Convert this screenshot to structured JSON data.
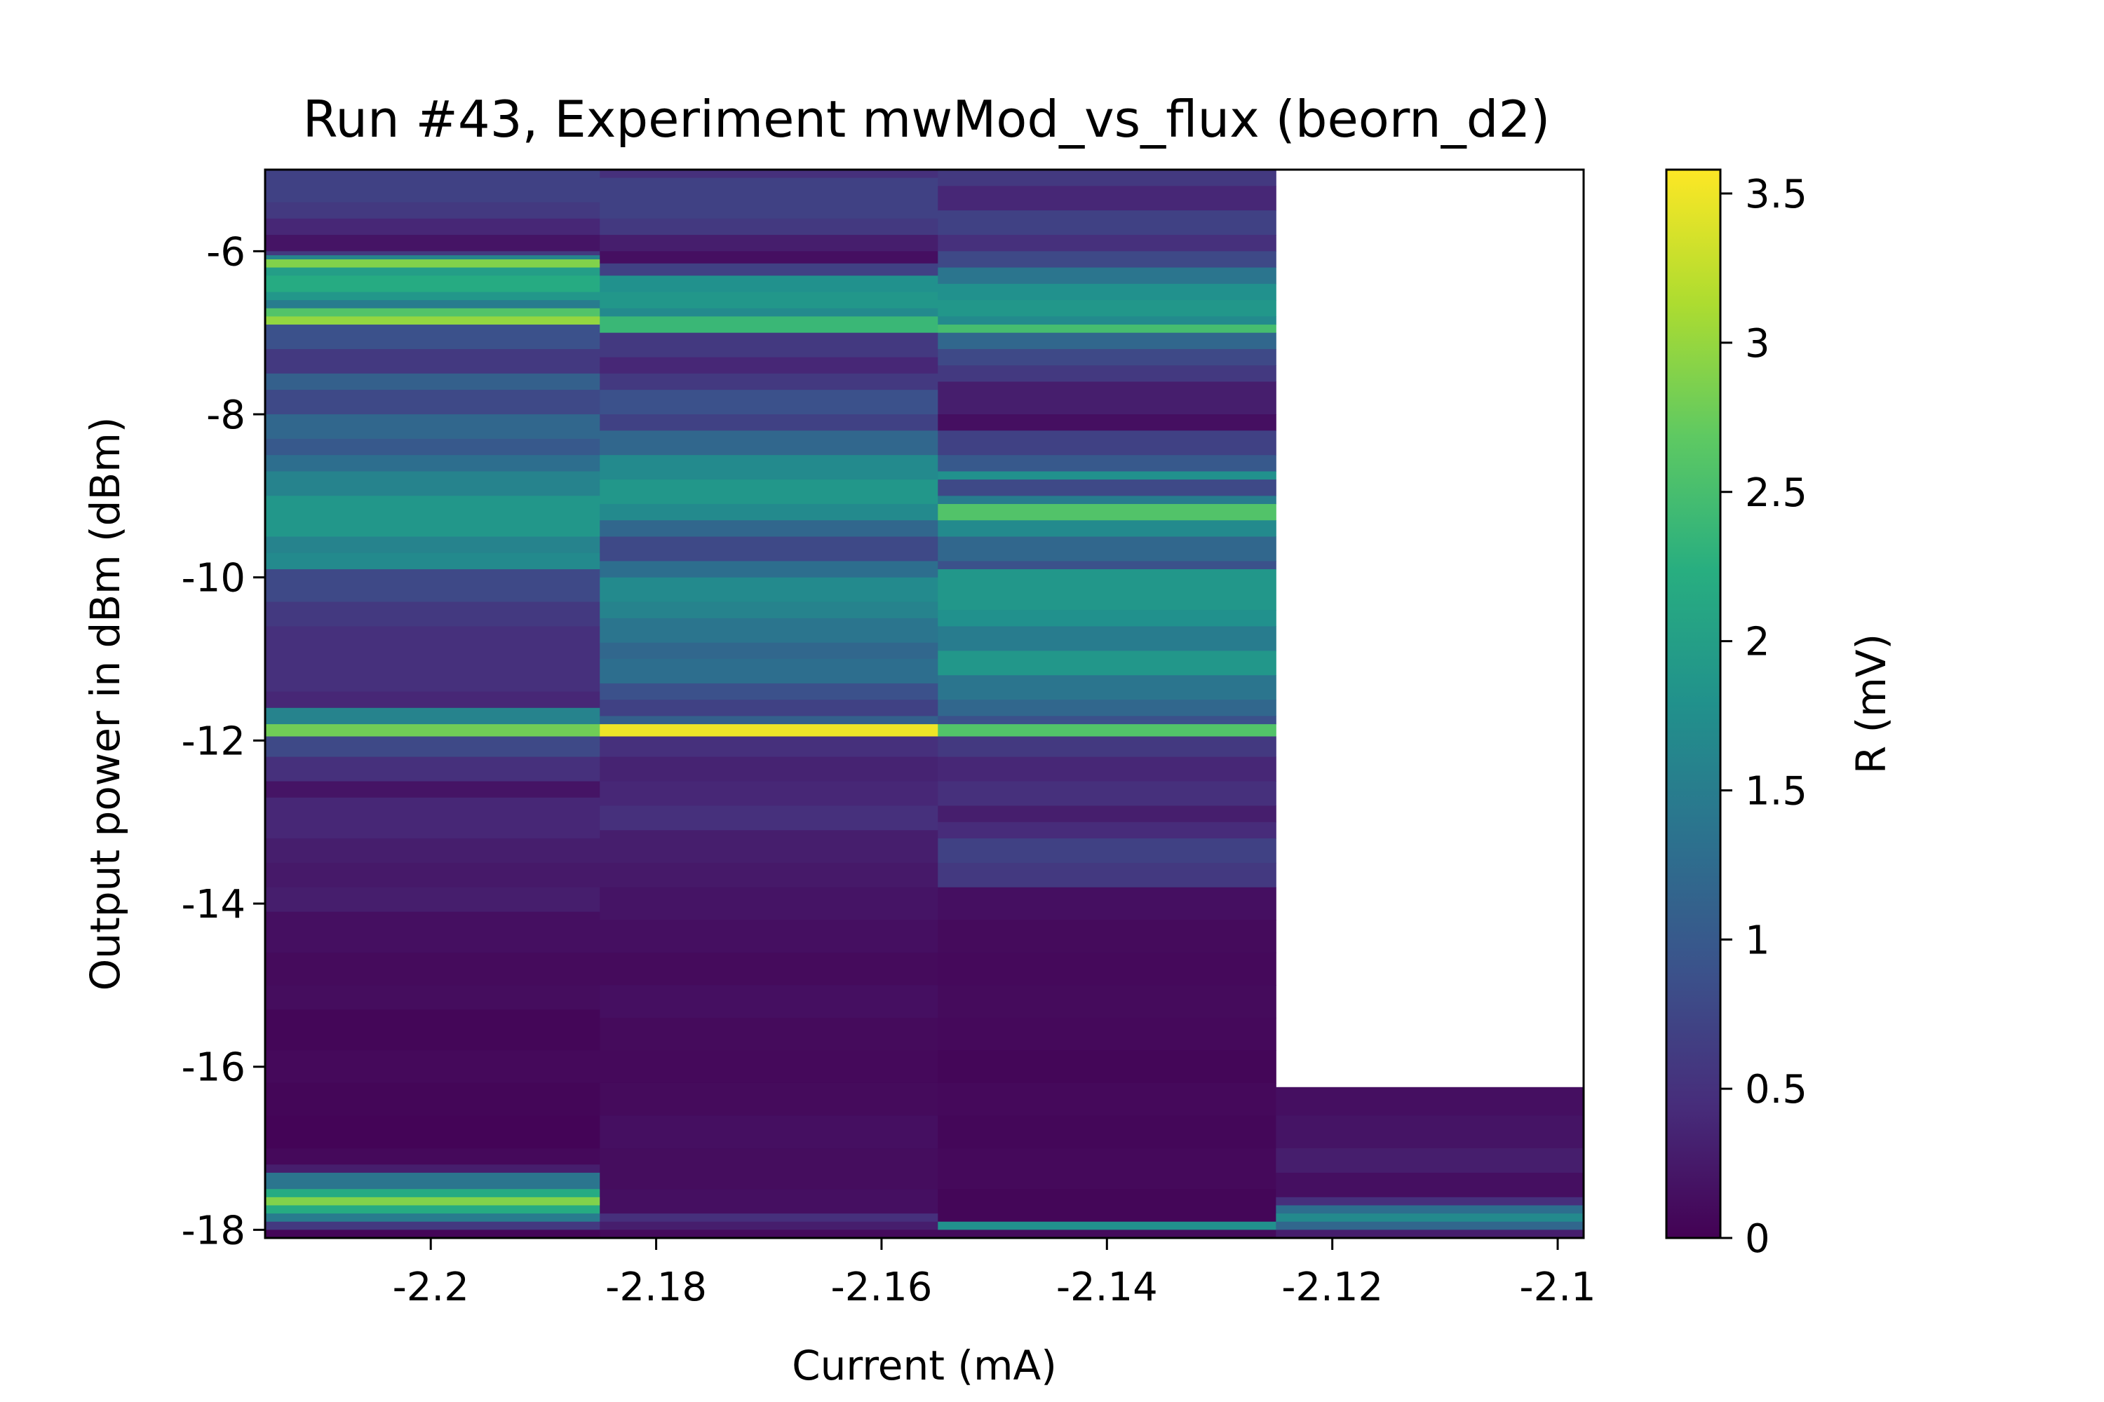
{
  "chart_data": {
    "type": "heatmap",
    "title": "Run #43, Experiment mwMod_vs_flux (beorn_d2)",
    "xlabel": "Current (mA)",
    "ylabel": "Output power in dBm (dBm)",
    "colorbar_label": "R (mV)",
    "colormap": "viridis",
    "xlim": [
      -2.2147,
      -2.0977
    ],
    "ylim": [
      -18.1,
      -5.0
    ],
    "clim": [
      0,
      3.58
    ],
    "x_ticks": [
      -2.2,
      -2.18,
      -2.16,
      -2.14,
      -2.12,
      -2.1
    ],
    "x_tick_labels": [
      "-2.2",
      "-2.18",
      "-2.16",
      "-2.14",
      "-2.12",
      "-2.1"
    ],
    "y_ticks": [
      -6,
      -8,
      -10,
      -12,
      -14,
      -16,
      -18
    ],
    "y_tick_labels": [
      "-6",
      "-8",
      "-10",
      "-12",
      "-14",
      "-16",
      "-18"
    ],
    "colorbar_ticks": [
      0,
      0.5,
      1,
      1.5,
      2,
      2.5,
      3,
      3.5
    ],
    "colorbar_tick_labels": [
      "0",
      "0.5",
      "1",
      "1.5",
      "2",
      "2.5",
      "3",
      "3.5"
    ],
    "columns": [
      {
        "x_center": -2.2,
        "y_top": -5.0,
        "y_bottom": -18.1,
        "stops": [
          [
            -5.0,
            0.7
          ],
          [
            -5.4,
            0.6
          ],
          [
            -5.6,
            0.4
          ],
          [
            -5.8,
            0.2
          ],
          [
            -6.0,
            0.6
          ],
          [
            -6.05,
            1.6
          ],
          [
            -6.1,
            2.9
          ],
          [
            -6.2,
            2.0
          ],
          [
            -6.3,
            2.2
          ],
          [
            -6.5,
            1.9
          ],
          [
            -6.6,
            1.5
          ],
          [
            -6.7,
            2.6
          ],
          [
            -6.8,
            3.0
          ],
          [
            -6.9,
            0.9
          ],
          [
            -7.2,
            0.6
          ],
          [
            -7.5,
            1.1
          ],
          [
            -7.7,
            0.8
          ],
          [
            -8.0,
            1.2
          ],
          [
            -8.3,
            1.0
          ],
          [
            -8.5,
            1.3
          ],
          [
            -8.7,
            1.6
          ],
          [
            -9.0,
            1.9
          ],
          [
            -9.5,
            1.6
          ],
          [
            -9.7,
            1.7
          ],
          [
            -9.9,
            0.8
          ],
          [
            -10.3,
            0.6
          ],
          [
            -10.6,
            0.5
          ],
          [
            -11.0,
            0.5
          ],
          [
            -11.4,
            0.4
          ],
          [
            -11.6,
            1.6
          ],
          [
            -11.8,
            2.8
          ],
          [
            -11.95,
            0.8
          ],
          [
            -12.2,
            0.5
          ],
          [
            -12.5,
            0.2
          ],
          [
            -12.7,
            0.4
          ],
          [
            -13.2,
            0.3
          ],
          [
            -13.5,
            0.25
          ],
          [
            -13.8,
            0.3
          ],
          [
            -14.1,
            0.15
          ],
          [
            -14.6,
            0.1
          ],
          [
            -15.0,
            0.12
          ],
          [
            -15.3,
            0.05
          ],
          [
            -15.8,
            0.08
          ],
          [
            -16.2,
            0.05
          ],
          [
            -16.6,
            0.03
          ],
          [
            -17.0,
            0.08
          ],
          [
            -17.2,
            0.3
          ],
          [
            -17.3,
            1.4
          ],
          [
            -17.5,
            2.2
          ],
          [
            -17.6,
            2.9
          ],
          [
            -17.7,
            2.2
          ],
          [
            -17.8,
            1.5
          ],
          [
            -17.9,
            0.6
          ],
          [
            -18.0,
            0.05
          ]
        ]
      },
      {
        "x_center": -2.17,
        "y_top": -5.0,
        "y_bottom": -18.1,
        "stops": [
          [
            -5.0,
            0.5
          ],
          [
            -5.1,
            0.7
          ],
          [
            -5.6,
            0.6
          ],
          [
            -5.8,
            0.3
          ],
          [
            -6.0,
            0.15
          ],
          [
            -6.15,
            0.7
          ],
          [
            -6.3,
            1.8
          ],
          [
            -6.5,
            1.9
          ],
          [
            -6.7,
            1.7
          ],
          [
            -6.8,
            2.4
          ],
          [
            -7.0,
            0.6
          ],
          [
            -7.3,
            0.4
          ],
          [
            -7.5,
            0.6
          ],
          [
            -7.7,
            0.9
          ],
          [
            -8.0,
            0.7
          ],
          [
            -8.2,
            1.2
          ],
          [
            -8.5,
            1.7
          ],
          [
            -8.8,
            1.9
          ],
          [
            -9.1,
            1.7
          ],
          [
            -9.3,
            1.2
          ],
          [
            -9.5,
            0.8
          ],
          [
            -9.8,
            1.3
          ],
          [
            -10.0,
            1.7
          ],
          [
            -10.3,
            1.6
          ],
          [
            -10.5,
            1.4
          ],
          [
            -10.8,
            1.2
          ],
          [
            -11.0,
            1.3
          ],
          [
            -11.3,
            0.9
          ],
          [
            -11.5,
            0.7
          ],
          [
            -11.7,
            1.1
          ],
          [
            -11.8,
            3.5
          ],
          [
            -11.95,
            0.5
          ],
          [
            -12.2,
            0.35
          ],
          [
            -12.5,
            0.4
          ],
          [
            -12.8,
            0.5
          ],
          [
            -13.1,
            0.3
          ],
          [
            -13.5,
            0.25
          ],
          [
            -13.8,
            0.2
          ],
          [
            -14.2,
            0.15
          ],
          [
            -14.6,
            0.1
          ],
          [
            -15.0,
            0.15
          ],
          [
            -15.4,
            0.1
          ],
          [
            -15.8,
            0.08
          ],
          [
            -16.2,
            0.1
          ],
          [
            -16.6,
            0.15
          ],
          [
            -17.0,
            0.12
          ],
          [
            -17.5,
            0.15
          ],
          [
            -17.8,
            0.5
          ],
          [
            -17.9,
            0.3
          ],
          [
            -18.0,
            0.1
          ]
        ]
      },
      {
        "x_center": -2.14,
        "y_top": -5.0,
        "y_bottom": -18.1,
        "stops": [
          [
            -5.0,
            0.6
          ],
          [
            -5.2,
            0.4
          ],
          [
            -5.5,
            0.7
          ],
          [
            -5.8,
            0.5
          ],
          [
            -6.0,
            0.8
          ],
          [
            -6.2,
            1.4
          ],
          [
            -6.4,
            1.8
          ],
          [
            -6.6,
            1.9
          ],
          [
            -6.8,
            1.7
          ],
          [
            -6.9,
            2.5
          ],
          [
            -7.0,
            1.2
          ],
          [
            -7.2,
            0.8
          ],
          [
            -7.4,
            0.6
          ],
          [
            -7.6,
            0.3
          ],
          [
            -8.0,
            0.15
          ],
          [
            -8.2,
            0.7
          ],
          [
            -8.5,
            1.0
          ],
          [
            -8.7,
            1.8
          ],
          [
            -8.8,
            0.8
          ],
          [
            -9.0,
            1.5
          ],
          [
            -9.1,
            2.6
          ],
          [
            -9.3,
            1.7
          ],
          [
            -9.5,
            1.2
          ],
          [
            -9.8,
            0.9
          ],
          [
            -9.9,
            1.9
          ],
          [
            -10.4,
            1.8
          ],
          [
            -10.6,
            1.5
          ],
          [
            -10.9,
            1.9
          ],
          [
            -11.2,
            1.4
          ],
          [
            -11.5,
            1.2
          ],
          [
            -11.7,
            0.9
          ],
          [
            -11.8,
            2.6
          ],
          [
            -11.95,
            0.6
          ],
          [
            -12.2,
            0.4
          ],
          [
            -12.5,
            0.5
          ],
          [
            -12.8,
            0.3
          ],
          [
            -13.0,
            0.45
          ],
          [
            -13.2,
            0.7
          ],
          [
            -13.5,
            0.6
          ],
          [
            -13.8,
            0.15
          ],
          [
            -14.2,
            0.1
          ],
          [
            -14.6,
            0.08
          ],
          [
            -15.0,
            0.1
          ],
          [
            -15.4,
            0.08
          ],
          [
            -15.8,
            0.05
          ],
          [
            -16.2,
            0.08
          ],
          [
            -16.6,
            0.06
          ],
          [
            -17.0,
            0.08
          ],
          [
            -17.5,
            0.05
          ],
          [
            -17.9,
            1.8
          ],
          [
            -18.0,
            0.1
          ]
        ]
      },
      {
        "x_center": -2.11,
        "y_top": -16.25,
        "y_bottom": -18.1,
        "stops": [
          [
            -16.25,
            0.15
          ],
          [
            -16.6,
            0.2
          ],
          [
            -17.0,
            0.3
          ],
          [
            -17.3,
            0.15
          ],
          [
            -17.6,
            0.5
          ],
          [
            -17.7,
            1.3
          ],
          [
            -17.8,
            1.7
          ],
          [
            -17.9,
            1.2
          ],
          [
            -18.0,
            0.3
          ]
        ]
      }
    ]
  }
}
